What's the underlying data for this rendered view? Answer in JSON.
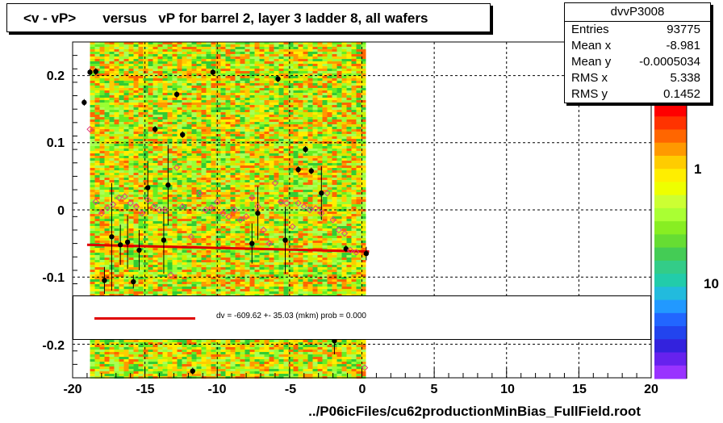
{
  "title": "<v - vP>       versus   vP for barrel 2, layer 3 ladder 8, all wafers",
  "stats": {
    "name": "dvvP3008",
    "rows": [
      {
        "key": "Entries",
        "value": "93775"
      },
      {
        "key": "Mean x",
        "value": "-8.981"
      },
      {
        "key": "Mean y",
        "value": "-0.0005034"
      },
      {
        "key": "RMS x",
        "value": "5.338"
      },
      {
        "key": "RMS y",
        "value": "0.1452"
      }
    ]
  },
  "legend": {
    "text": "dv = -609.62 +- 35.03 (mkm) prob = 0.000",
    "line_color": "#e00000"
  },
  "x_axis_label": "../P06icFiles/cu62productionMinBias_FullField.root",
  "z_axis_labels": [
    "1",
    "10"
  ],
  "chart_data": {
    "type": "scatter",
    "xlim": [
      -20,
      20
    ],
    "ylim": [
      -0.25,
      0.25
    ],
    "x_ticks": [
      -20,
      -15,
      -10,
      -5,
      0,
      5,
      10,
      15,
      20
    ],
    "y_ticks": [
      0.2,
      0.1,
      0,
      -0.1,
      -0.2
    ],
    "grid": true,
    "heatmap_x_range": [
      -18.8,
      0
    ],
    "series": [
      {
        "marker": "black-filled-circle",
        "points": [
          {
            "x": -19.2,
            "y": 0.16,
            "e": 0.005
          },
          {
            "x": -18.8,
            "y": 0.205,
            "e": 0.005
          },
          {
            "x": -18.4,
            "y": 0.206,
            "e": 0.005
          },
          {
            "x": -17.8,
            "y": -0.105,
            "e": 0.02
          },
          {
            "x": -17.3,
            "y": -0.04,
            "e": 0.08
          },
          {
            "x": -16.7,
            "y": -0.052,
            "e": 0.03
          },
          {
            "x": -16.2,
            "y": -0.048,
            "e": 0.04
          },
          {
            "x": -15.8,
            "y": -0.107,
            "e": 0.01
          },
          {
            "x": -15.4,
            "y": -0.06,
            "e": 0.03
          },
          {
            "x": -14.8,
            "y": 0.033,
            "e": 0.04
          },
          {
            "x": -14.3,
            "y": 0.12,
            "e": 0.005
          },
          {
            "x": -13.7,
            "y": -0.045,
            "e": 0.05
          },
          {
            "x": -13.4,
            "y": 0.037,
            "e": 0.06
          },
          {
            "x": -12.8,
            "y": 0.172,
            "e": 0.005
          },
          {
            "x": -12.4,
            "y": 0.112,
            "e": 0.005
          },
          {
            "x": -11.7,
            "y": -0.24,
            "e": 0.005
          },
          {
            "x": -10.3,
            "y": 0.205,
            "e": 0.005
          },
          {
            "x": -7.6,
            "y": -0.05,
            "e": 0.03
          },
          {
            "x": -7.2,
            "y": -0.005,
            "e": 0.04
          },
          {
            "x": -5.8,
            "y": 0.195,
            "e": 0.005
          },
          {
            "x": -5.3,
            "y": -0.045,
            "e": 0.05
          },
          {
            "x": -4.4,
            "y": 0.06,
            "e": 0.005
          },
          {
            "x": -3.9,
            "y": 0.09,
            "e": 0.005
          },
          {
            "x": -3.5,
            "y": 0.058,
            "e": 0.005
          },
          {
            "x": -2.8,
            "y": 0.025,
            "e": 0.04
          },
          {
            "x": -1.9,
            "y": -0.195,
            "e": 0.02
          },
          {
            "x": -1.1,
            "y": -0.058,
            "e": 0.005
          },
          {
            "x": 0.3,
            "y": -0.065,
            "e": 0.01
          }
        ]
      },
      {
        "marker": "open-diamond",
        "points": [
          {
            "x": -18.8,
            "y": 0.12
          },
          {
            "x": -18.4,
            "y": 0.012
          },
          {
            "x": -18.0,
            "y": -0.005
          },
          {
            "x": -17.6,
            "y": 0.003
          },
          {
            "x": -17.2,
            "y": 0.008
          },
          {
            "x": -16.8,
            "y": 0.018
          },
          {
            "x": -16.4,
            "y": 0.02
          },
          {
            "x": -16.0,
            "y": 0.01
          },
          {
            "x": -15.6,
            "y": 0.005
          },
          {
            "x": -15.2,
            "y": -0.005
          },
          {
            "x": -14.8,
            "y": 0.015
          },
          {
            "x": -14.4,
            "y": 0.005
          },
          {
            "x": -14.0,
            "y": 0.0
          },
          {
            "x": -13.6,
            "y": 0.0
          },
          {
            "x": -13.2,
            "y": -0.097
          },
          {
            "x": -12.8,
            "y": 0.063
          },
          {
            "x": -12.4,
            "y": 0.005
          },
          {
            "x": -11.8,
            "y": -0.04
          },
          {
            "x": -11.2,
            "y": 0.025
          },
          {
            "x": -10.8,
            "y": 0.0
          },
          {
            "x": -10.4,
            "y": 0.003
          },
          {
            "x": -10.0,
            "y": 0.012
          },
          {
            "x": -9.6,
            "y": -0.005
          },
          {
            "x": -9.2,
            "y": -0.01
          },
          {
            "x": -8.8,
            "y": 0.0
          },
          {
            "x": -8.4,
            "y": -0.015
          },
          {
            "x": -8.0,
            "y": -0.01
          },
          {
            "x": -7.6,
            "y": 0.018
          },
          {
            "x": -7.2,
            "y": 0.005
          },
          {
            "x": -6.8,
            "y": -0.03
          },
          {
            "x": -6.4,
            "y": -0.05
          },
          {
            "x": -6.0,
            "y": 0.04
          },
          {
            "x": -5.6,
            "y": 0.012
          },
          {
            "x": -5.2,
            "y": 0.01
          },
          {
            "x": -4.8,
            "y": -0.025
          },
          {
            "x": -4.4,
            "y": 0.01
          },
          {
            "x": -4.0,
            "y": 0.005
          },
          {
            "x": -3.6,
            "y": 0.0
          },
          {
            "x": -3.2,
            "y": 0.002
          },
          {
            "x": -2.8,
            "y": -0.005
          },
          {
            "x": -2.4,
            "y": 0.025
          },
          {
            "x": -2.0,
            "y": -0.015
          },
          {
            "x": -1.6,
            "y": -0.03
          },
          {
            "x": -1.2,
            "y": -0.035
          },
          {
            "x": -0.8,
            "y": -0.06
          },
          {
            "x": -0.4,
            "y": -0.063
          },
          {
            "x": 0.2,
            "y": -0.235
          }
        ]
      }
    ],
    "fit_line": {
      "x": [
        -19,
        0.5
      ],
      "y": [
        -0.052,
        -0.062
      ],
      "color": "#e00000"
    }
  }
}
